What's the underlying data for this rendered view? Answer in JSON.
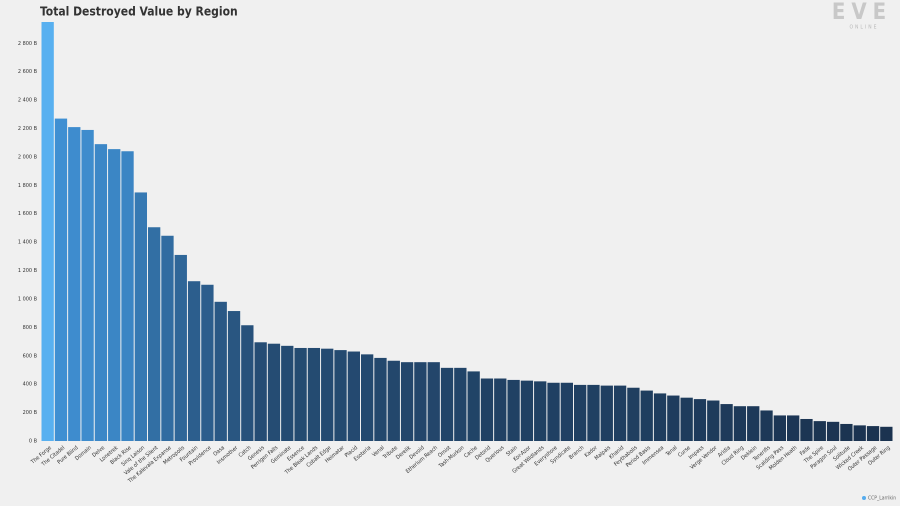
{
  "chart_data": {
    "type": "bar",
    "title": "Total Destroyed Value by Region",
    "logo": "EVE",
    "logo_sub": "ONLINE",
    "credit": "CCP_Larrikin",
    "categories": [
      "The Forge",
      "The Citadel",
      "Pure Blind",
      "Domain",
      "Delve",
      "Lonetrek",
      "Black Rise",
      "Sinq Laison",
      "Vale of the Silent",
      "The Kalevala Expanse",
      "Metropolis",
      "Fountain",
      "Providence",
      "Oasa",
      "Insmother",
      "Catch",
      "Genesis",
      "Perrigen Falls",
      "Geminate",
      "Essence",
      "The Bleak Lands",
      "Cobalt Edge",
      "Heimatar",
      "Placid",
      "Esoteria",
      "Venal",
      "Tribute",
      "Derelik",
      "Devoid",
      "Etherium Reach",
      "Omist",
      "Tash-Murkon",
      "Cache",
      "Detorid",
      "Querious",
      "Stain",
      "Kor-Azor",
      "Great Wildlands",
      "Everyshore",
      "Syndicate",
      "Branch",
      "Kador",
      "Malpais",
      "Khanid",
      "Feythabolis",
      "Period Basis",
      "Immensea",
      "Tenal",
      "Curse",
      "Impass",
      "Verge Vendor",
      "Aridia",
      "Cloud Ring",
      "Deklein",
      "Tenerifis",
      "Scalding Pass",
      "Molden Heath",
      "Fade",
      "The Spire",
      "Paragon Soul",
      "Solitude",
      "Wicked Creek",
      "Outer Passage",
      "Outer Ring"
    ],
    "values": [
      2950,
      2270,
      2210,
      2190,
      2090,
      2055,
      2040,
      1750,
      1505,
      1445,
      1310,
      1125,
      1100,
      980,
      915,
      815,
      695,
      685,
      670,
      655,
      655,
      650,
      640,
      630,
      610,
      585,
      565,
      555,
      555,
      555,
      515,
      515,
      490,
      440,
      440,
      430,
      425,
      420,
      410,
      410,
      395,
      395,
      390,
      390,
      375,
      355,
      335,
      320,
      305,
      295,
      285,
      260,
      245,
      245,
      215,
      180,
      180,
      155,
      140,
      135,
      120,
      110,
      105,
      100
    ],
    "highlight_color": "#58b0f0",
    "color_scale": [
      "#3f8fd2",
      "#1b3350"
    ],
    "ylim": [
      0,
      2950
    ],
    "yticks": [
      {
        "value": 0,
        "label": "0 B"
      },
      {
        "value": 200,
        "label": "200 B"
      },
      {
        "value": 400,
        "label": "400 B"
      },
      {
        "value": 600,
        "label": "600 B"
      },
      {
        "value": 800,
        "label": "800 B"
      },
      {
        "value": 1000,
        "label": "1 000 B"
      },
      {
        "value": 1200,
        "label": "1 200 B"
      },
      {
        "value": 1400,
        "label": "1 400 B"
      },
      {
        "value": 1600,
        "label": "1 600 B"
      },
      {
        "value": 1800,
        "label": "1 800 B"
      },
      {
        "value": 2000,
        "label": "2 000 B"
      },
      {
        "value": 2200,
        "label": "2 200 B"
      },
      {
        "value": 2400,
        "label": "2 400 B"
      },
      {
        "value": 2600,
        "label": "2 600 B"
      },
      {
        "value": 2800,
        "label": "2 800 B"
      }
    ],
    "grid": false
  }
}
